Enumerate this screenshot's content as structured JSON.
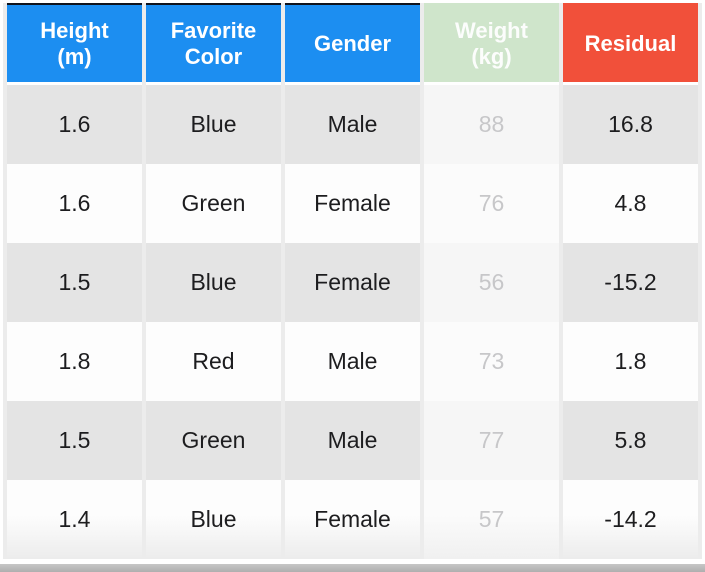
{
  "table": {
    "columns": [
      {
        "key": "height",
        "label_line1": "Height",
        "label_line2": "(m)"
      },
      {
        "key": "favorite_color",
        "label_line1": "Favorite",
        "label_line2": "Color"
      },
      {
        "key": "gender",
        "label_line1": "Gender",
        "label_line2": ""
      },
      {
        "key": "weight",
        "label_line1": "Weight",
        "label_line2": "(kg)"
      },
      {
        "key": "residual",
        "label_line1": "Residual",
        "label_line2": ""
      }
    ],
    "rows": [
      {
        "cells": [
          "1.6",
          "Blue",
          "Male",
          "88",
          "16.8"
        ]
      },
      {
        "cells": [
          "1.6",
          "Green",
          "Female",
          "76",
          "4.8"
        ]
      },
      {
        "cells": [
          "1.5",
          "Blue",
          "Female",
          "56",
          "-15.2"
        ]
      },
      {
        "cells": [
          "1.8",
          "Red",
          "Male",
          "73",
          "1.8"
        ]
      },
      {
        "cells": [
          "1.5",
          "Green",
          "Male",
          "77",
          "5.8"
        ]
      },
      {
        "cells": [
          "1.4",
          "Blue",
          "Female",
          "57",
          "-14.2"
        ]
      }
    ]
  },
  "chart_data": {
    "type": "table",
    "columns": [
      "Height (m)",
      "Favorite Color",
      "Gender",
      "Weight (kg)",
      "Residual"
    ],
    "rows": [
      [
        1.6,
        "Blue",
        "Male",
        88,
        16.8
      ],
      [
        1.6,
        "Green",
        "Female",
        76,
        4.8
      ],
      [
        1.5,
        "Blue",
        "Female",
        56,
        -15.2
      ],
      [
        1.8,
        "Red",
        "Male",
        73,
        1.8
      ],
      [
        1.5,
        "Green",
        "Male",
        77,
        5.8
      ],
      [
        1.4,
        "Blue",
        "Female",
        57,
        -14.2
      ]
    ],
    "notes": "Weight (kg) column rendered faded/ghosted; Residual column highlighted red in header"
  },
  "colors": {
    "header_blue": "#1c8ef1",
    "header_green_faded": "#cfe5cb",
    "header_red": "#f1503a",
    "header_text": "#ffffff",
    "row_gray": "#e4e4e4",
    "row_white": "#fdfdfd",
    "weight_cell_on_gray": "#f6f6f6",
    "weight_value_text": "#c7c7c9",
    "body_text": "#1d1d1f",
    "top_edge_line": "#10131c",
    "bottom_strip": "#b0b0b0"
  }
}
